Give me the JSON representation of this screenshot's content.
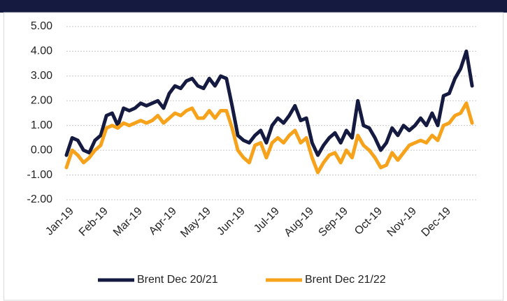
{
  "chart_data": {
    "type": "line",
    "categories": [
      "Jan-19",
      null,
      null,
      null,
      null,
      null,
      "Feb-19",
      null,
      null,
      null,
      null,
      null,
      "Mar-19",
      null,
      null,
      null,
      null,
      null,
      "Apr-19",
      null,
      null,
      null,
      null,
      null,
      "May-19",
      null,
      null,
      null,
      null,
      null,
      "Jun-19",
      null,
      null,
      null,
      null,
      null,
      "Jul-19",
      null,
      null,
      null,
      null,
      null,
      "Aug-19",
      null,
      null,
      null,
      null,
      null,
      "Sep-19",
      null,
      null,
      null,
      null,
      null,
      "Oct-19",
      null,
      null,
      null,
      null,
      null,
      "Nov-19",
      null,
      null,
      null,
      null,
      null,
      "Dec-19",
      null,
      null,
      null,
      null,
      null
    ],
    "series": [
      {
        "name": "Brent Dec 20/21",
        "color": "#141a40",
        "values": [
          -0.2,
          0.5,
          0.4,
          0.0,
          -0.1,
          0.4,
          0.6,
          1.4,
          1.5,
          1.0,
          1.7,
          1.6,
          1.7,
          1.9,
          1.8,
          1.9,
          2.0,
          1.7,
          2.3,
          2.6,
          2.5,
          2.8,
          2.9,
          2.6,
          2.5,
          2.9,
          2.6,
          3.0,
          2.9,
          1.8,
          0.6,
          0.4,
          0.3,
          0.6,
          0.8,
          0.3,
          1.0,
          1.3,
          1.1,
          1.4,
          1.8,
          1.2,
          1.3,
          0.3,
          -0.2,
          0.2,
          0.5,
          0.7,
          0.3,
          0.8,
          0.5,
          2.0,
          1.0,
          0.9,
          0.5,
          0.0,
          0.3,
          0.9,
          0.6,
          1.0,
          0.8,
          1.0,
          1.3,
          1.0,
          1.5,
          1.0,
          2.2,
          2.3,
          2.9,
          3.3,
          4.0,
          2.6
        ]
      },
      {
        "name": "Brent Dec 21/22",
        "color": "#f7a21b",
        "values": [
          -0.7,
          0.0,
          -0.2,
          -0.5,
          -0.3,
          0.0,
          0.2,
          0.9,
          1.0,
          0.9,
          1.1,
          1.0,
          1.1,
          1.2,
          1.1,
          1.2,
          1.4,
          1.1,
          1.3,
          1.5,
          1.4,
          1.6,
          1.7,
          1.3,
          1.3,
          1.6,
          1.3,
          1.6,
          1.6,
          0.9,
          0.0,
          -0.3,
          -0.5,
          0.2,
          0.3,
          -0.3,
          0.3,
          0.5,
          0.3,
          0.6,
          0.8,
          0.3,
          0.5,
          -0.3,
          -0.9,
          -0.5,
          -0.2,
          -0.1,
          -0.5,
          0.0,
          -0.3,
          0.6,
          0.2,
          0.0,
          -0.3,
          -0.7,
          -0.6,
          -0.1,
          -0.4,
          -0.1,
          0.2,
          0.3,
          0.4,
          0.3,
          0.6,
          0.4,
          1.0,
          1.1,
          1.4,
          1.5,
          1.9,
          1.1
        ]
      }
    ],
    "ylim": [
      -2,
      5
    ],
    "yticks": [
      {
        "value": -2,
        "label": "-2.00"
      },
      {
        "value": -1,
        "label": "-1.00"
      },
      {
        "value": 0,
        "label": "0.00"
      },
      {
        "value": 1,
        "label": "1.00"
      },
      {
        "value": 2,
        "label": "2.00"
      },
      {
        "value": 3,
        "label": "3.00"
      },
      {
        "value": 4,
        "label": "4.00"
      },
      {
        "value": 5,
        "label": "5.00"
      }
    ],
    "grid": true,
    "legend": "bottom"
  }
}
